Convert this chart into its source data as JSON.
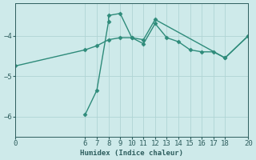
{
  "line1_x": [
    0,
    6,
    7,
    8,
    9,
    10,
    11,
    12,
    13,
    14,
    15,
    16,
    17,
    18,
    20
  ],
  "line1_y": [
    -4.75,
    -4.35,
    -4.25,
    -4.1,
    -4.05,
    -4.05,
    -4.2,
    -3.7,
    -4.05,
    -4.15,
    -4.35,
    -4.4,
    -4.4,
    -4.55,
    -4.0
  ],
  "line2_x": [
    6,
    7,
    8,
    8,
    9,
    10,
    11,
    12,
    18,
    20
  ],
  "line2_y": [
    -5.95,
    -5.35,
    -3.65,
    -3.5,
    -3.45,
    -4.05,
    -4.1,
    -3.6,
    -4.55,
    -4.0
  ],
  "line_color": "#2e8b7a",
  "marker": "D",
  "markersize": 2.5,
  "linewidth": 1.0,
  "xlabel": "Humidex (Indice chaleur)",
  "xlim": [
    0,
    20
  ],
  "ylim": [
    -6.5,
    -3.2
  ],
  "xticks": [
    0,
    6,
    7,
    8,
    9,
    10,
    11,
    12,
    13,
    14,
    15,
    16,
    17,
    18,
    20
  ],
  "yticks": [
    -6,
    -5,
    -4
  ],
  "bg_color": "#ceeaea",
  "grid_color": "#afd4d4",
  "text_color": "#2e5e5e",
  "font_size": 6.5
}
